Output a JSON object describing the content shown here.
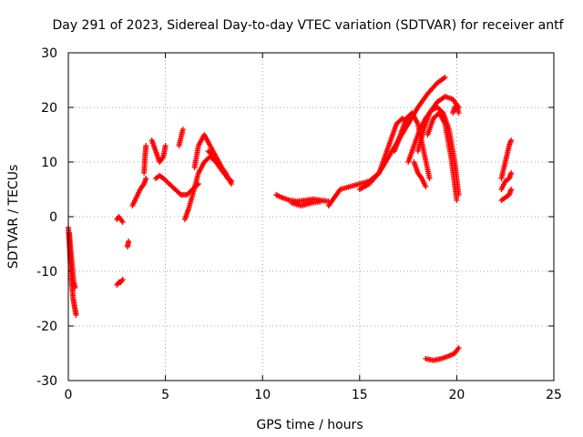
{
  "chart_data": {
    "type": "scatter",
    "title": "Day 291 of 2023, Sidereal Day-to-day VTEC variation (SDTVAR) for receiver antf",
    "xlabel": "GPS time / hours",
    "ylabel": "SDTVAR / TECUs",
    "xlim": [
      0,
      25
    ],
    "ylim": [
      -30,
      30
    ],
    "x_ticks": [
      0,
      5,
      10,
      15,
      20,
      25
    ],
    "y_ticks": [
      -30,
      -20,
      -10,
      0,
      10,
      20,
      30
    ],
    "grid": true,
    "marker": "+",
    "color": "#ff0000",
    "series": [
      {
        "name": "SDTVAR",
        "segments": [
          {
            "x": [
              0.0,
              0.05,
              0.1,
              0.15,
              0.2,
              0.25,
              0.3,
              0.35,
              0.4
            ],
            "y": [
              -2,
              -5,
              -8,
              -11,
              -13,
              -15,
              -16,
              -17,
              -18
            ]
          },
          {
            "x": [
              0.05,
              0.12,
              0.2,
              0.28,
              0.35
            ],
            "y": [
              -3,
              -6,
              -9,
              -12,
              -13
            ]
          },
          {
            "x": [
              2.5,
              2.6,
              2.7,
              2.8
            ],
            "y": [
              -0.5,
              0,
              -0.5,
              -1
            ]
          },
          {
            "x": [
              2.5,
              2.6,
              2.7,
              2.8
            ],
            "y": [
              -12.5,
              -12,
              -12,
              -11.5
            ]
          },
          {
            "x": [
              3.05,
              3.1
            ],
            "y": [
              -5.5,
              -4.5
            ]
          },
          {
            "x": [
              3.3,
              3.5,
              3.7,
              3.9,
              4.0
            ],
            "y": [
              2,
              3.5,
              5,
              6,
              7
            ]
          },
          {
            "x": [
              3.9,
              3.95,
              4.0
            ],
            "y": [
              8,
              11,
              13
            ]
          },
          {
            "x": [
              4.3,
              4.5,
              4.7,
              4.9,
              5.0
            ],
            "y": [
              14,
              12,
              10,
              11,
              13
            ]
          },
          {
            "x": [
              4.5,
              4.7,
              4.9,
              5.2,
              5.5,
              5.8,
              6.1,
              6.4,
              6.7
            ],
            "y": [
              7,
              7.5,
              7,
              6,
              5,
              4,
              4,
              5,
              6
            ]
          },
          {
            "x": [
              5.7,
              5.8,
              5.9
            ],
            "y": [
              13,
              14.5,
              16
            ]
          },
          {
            "x": [
              6.0,
              6.2,
              6.4,
              6.7,
              7.0,
              7.3,
              7.6,
              8.0,
              8.4
            ],
            "y": [
              -0.5,
              1.5,
              4,
              8,
              10,
              11,
              10,
              8,
              6.5
            ]
          },
          {
            "x": [
              6.5,
              6.7,
              7.0,
              7.3,
              7.6,
              7.9,
              8.2
            ],
            "y": [
              9,
              13,
              15,
              13,
              11,
              9,
              7
            ]
          },
          {
            "x": [
              7.2,
              7.5,
              7.8,
              8.1,
              8.4
            ],
            "y": [
              12,
              11,
              9.5,
              8,
              6
            ]
          },
          {
            "x": [
              10.7,
              11.0,
              11.4,
              11.8,
              12.2,
              12.6,
              13.0,
              13.4
            ],
            "y": [
              4,
              3.5,
              3,
              2.8,
              3,
              3.2,
              3,
              2.8
            ]
          },
          {
            "x": [
              11.5,
              12.0,
              12.5,
              13.0
            ],
            "y": [
              2.5,
              2,
              2.5,
              2.8
            ]
          },
          {
            "x": [
              13.4,
              13.7,
              14.0,
              14.5,
              15.0,
              15.5,
              16.0
            ],
            "y": [
              2,
              3.5,
              5,
              5.5,
              6,
              6.5,
              8
            ]
          },
          {
            "x": [
              15.0,
              15.5,
              16.0,
              16.5,
              17.0,
              17.5,
              18.0,
              18.5,
              19.0,
              19.4
            ],
            "y": [
              5,
              6,
              8,
              11,
              14,
              17,
              20,
              22.5,
              24.5,
              25.5
            ]
          },
          {
            "x": [
              16.0,
              16.3,
              16.6,
              16.9,
              17.2,
              17.5
            ],
            "y": [
              8,
              11,
              14,
              17,
              18,
              17
            ]
          },
          {
            "x": [
              16.8,
              17.1,
              17.4,
              17.7,
              18.0,
              18.3,
              18.6
            ],
            "y": [
              12,
              15,
              18,
              19,
              17,
              12,
              7
            ]
          },
          {
            "x": [
              17.5,
              17.8,
              18.1,
              18.4,
              18.7,
              19.0,
              19.3,
              19.6,
              19.9,
              20.1
            ],
            "y": [
              10,
              13,
              16,
              18,
              19.5,
              20,
              19,
              16,
              10,
              4
            ]
          },
          {
            "x": [
              17.8,
              18.0,
              18.2,
              18.4
            ],
            "y": [
              10,
              8,
              7,
              5.5
            ]
          },
          {
            "x": [
              18.0,
              18.3,
              18.6,
              19.0,
              19.4,
              19.8,
              20.1
            ],
            "y": [
              12,
              16,
              19,
              21,
              22,
              21.5,
              20
            ]
          },
          {
            "x": [
              18.5,
              18.8,
              19.1,
              19.4,
              19.7,
              20.0
            ],
            "y": [
              15,
              18,
              19,
              17,
              11,
              3
            ]
          },
          {
            "x": [
              19.8,
              19.9,
              20.0,
              20.1
            ],
            "y": [
              19,
              20,
              20.5,
              19
            ]
          },
          {
            "x": [
              18.4,
              18.8,
              19.2,
              19.6,
              19.9,
              20.1
            ],
            "y": [
              -26,
              -26.3,
              -26,
              -25.5,
              -25,
              -24
            ]
          },
          {
            "x": [
              22.3,
              22.5,
              22.7,
              22.8
            ],
            "y": [
              7,
              10,
              13,
              14
            ]
          },
          {
            "x": [
              22.3,
              22.5,
              22.7,
              22.8
            ],
            "y": [
              5,
              6.5,
              7,
              8
            ]
          },
          {
            "x": [
              22.3,
              22.5,
              22.7,
              22.8
            ],
            "y": [
              3,
              3.5,
              4,
              5
            ]
          }
        ]
      }
    ]
  }
}
